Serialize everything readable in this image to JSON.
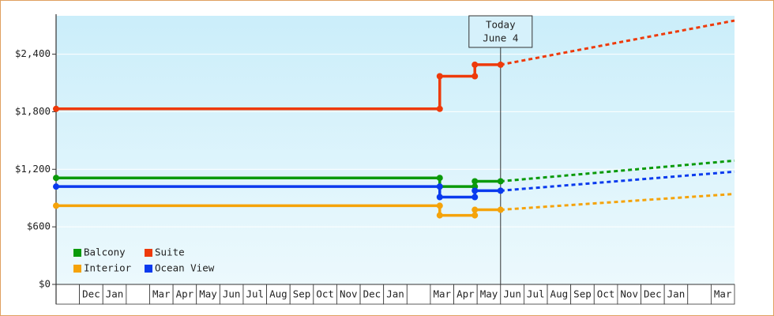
{
  "chart_data": {
    "type": "line",
    "categories": [
      null,
      "Dec",
      "Jan",
      null,
      "Mar",
      "Apr",
      "May",
      "Jun",
      "Jul",
      "Aug",
      "Sep",
      "Oct",
      "Nov",
      "Dec",
      "Jan",
      null,
      "Mar",
      "Apr",
      "May",
      "Jun",
      "Jul",
      "Aug",
      "Sep",
      "Oct",
      "Nov",
      "Dec",
      "Jan",
      null,
      "Mar"
    ],
    "xlim": [
      0,
      29
    ],
    "ylim": [
      0,
      2800
    ],
    "yticks": [
      {
        "value": 0,
        "label": "$0"
      },
      {
        "value": 600,
        "label": "$600"
      },
      {
        "value": 1200,
        "label": "$1,200"
      },
      {
        "value": 1800,
        "label": "$1,800"
      },
      {
        "value": 2400,
        "label": "$2,400"
      }
    ],
    "grid": true,
    "annotation": {
      "lines": [
        "Today",
        "June 4"
      ],
      "x": 19.0
    },
    "series": [
      {
        "name": "Balcony",
        "color": "#0a9a0a",
        "x": [
          0,
          16.4,
          16.4,
          17.9,
          17.9,
          19.0
        ],
        "values": [
          1110,
          1110,
          1020,
          1020,
          1075,
          1075
        ],
        "forecast_x": [
          19.0,
          29
        ],
        "forecast_values": [
          1075,
          1290
        ]
      },
      {
        "name": "Suite",
        "color": "#ee3a0a",
        "x": [
          0,
          16.4,
          16.4,
          17.9,
          17.9,
          19.0
        ],
        "values": [
          1830,
          1830,
          2170,
          2170,
          2290,
          2290
        ],
        "forecast_x": [
          19.0,
          29
        ],
        "forecast_values": [
          2290,
          2750
        ]
      },
      {
        "name": "Interior",
        "color": "#f5a30a",
        "x": [
          0,
          16.4,
          16.4,
          17.9,
          17.9,
          19.0
        ],
        "values": [
          820,
          820,
          720,
          720,
          778,
          778
        ],
        "forecast_x": [
          19.0,
          29
        ],
        "forecast_values": [
          778,
          943
        ]
      },
      {
        "name": "Ocean View",
        "color": "#0a3aee",
        "x": [
          0,
          16.4,
          16.4,
          17.9,
          17.9,
          19.0
        ],
        "values": [
          1020,
          1020,
          910,
          910,
          977,
          977
        ],
        "forecast_x": [
          19.0,
          29
        ],
        "forecast_values": [
          977,
          1175
        ]
      }
    ]
  }
}
